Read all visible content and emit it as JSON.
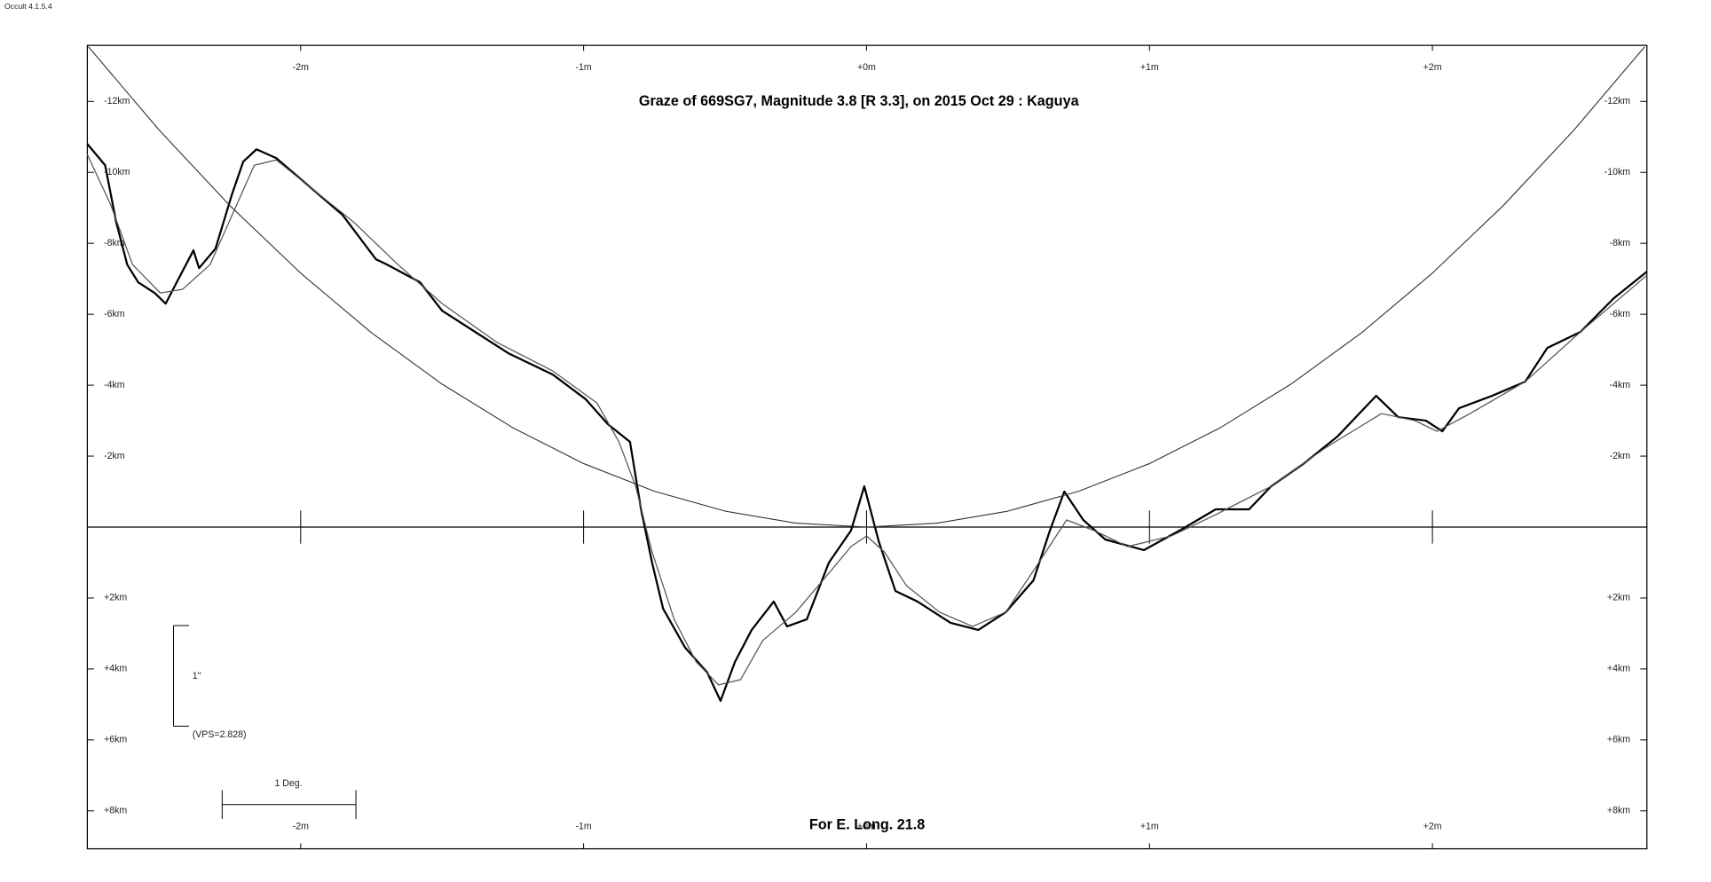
{
  "chart_data": {
    "type": "line",
    "version": "Occult 4.1.5.4",
    "title": "Graze of  669SG7,  Magnitude 3.8 [R 3.3],  on 2015 Oct 29  :  Kaguya",
    "footer": "For E. Long. 21.8",
    "annotations": [
      "1\"",
      "(VPS=2.828)",
      "1 Deg."
    ],
    "xlim": [
      -2.754,
      2.758
    ],
    "ylim": [
      9.07,
      -13.58
    ],
    "xticks": [
      {
        "value": -2,
        "label": "-2m"
      },
      {
        "value": -1,
        "label": "-1m"
      },
      {
        "value": 0,
        "label": "+0m"
      },
      {
        "value": 1,
        "label": "+1m"
      },
      {
        "value": 2,
        "label": "+2m"
      }
    ],
    "yticks": [
      {
        "value": -12,
        "label": "-12km"
      },
      {
        "value": -10,
        "label": "-10km"
      },
      {
        "value": -8,
        "label": "-8km"
      },
      {
        "value": -6,
        "label": "-6km"
      },
      {
        "value": -4,
        "label": "-4km"
      },
      {
        "value": -2,
        "label": "-2km"
      },
      {
        "value": 2,
        "label": "+2km"
      },
      {
        "value": 4,
        "label": "+4km"
      },
      {
        "value": 6,
        "label": "+6km"
      },
      {
        "value": 8,
        "label": "+8km"
      }
    ],
    "series": [
      {
        "color": "#000000",
        "x": [
          -2.754,
          -2.691,
          -2.652,
          -2.613,
          -2.574,
          -2.516,
          -2.477,
          -2.438,
          -2.379,
          -2.359,
          -2.301,
          -2.242,
          -2.203,
          -2.156,
          -2.086,
          -1.969,
          -1.852,
          -1.734,
          -1.695,
          -1.578,
          -1.5,
          -1.383,
          -1.266,
          -1.109,
          -0.992,
          -0.914,
          -0.836,
          -0.797,
          -0.758,
          -0.719,
          -0.641,
          -0.563,
          -0.516,
          -0.465,
          -0.406,
          -0.328,
          -0.281,
          -0.211,
          -0.133,
          -0.055,
          -0.008,
          0.043,
          0.102,
          0.18,
          0.297,
          0.395,
          0.492,
          0.59,
          0.648,
          0.699,
          0.766,
          0.844,
          0.98,
          1.117,
          1.234,
          1.352,
          1.43,
          1.547,
          1.664,
          1.801,
          1.879,
          1.977,
          2.035,
          2.094,
          2.211,
          2.328,
          2.406,
          2.523,
          2.641,
          2.758
        ],
        "values": [
          -10.8,
          -10.2,
          -8.6,
          -7.4,
          -6.9,
          -6.6,
          -6.3,
          -6.9,
          -7.8,
          -7.3,
          -7.85,
          -9.4,
          -10.3,
          -10.65,
          -10.4,
          -9.6,
          -8.8,
          -7.55,
          -7.4,
          -6.9,
          -6.1,
          -5.5,
          -4.9,
          -4.3,
          -3.6,
          -2.9,
          -2.4,
          -0.5,
          1.0,
          2.3,
          3.4,
          4.1,
          4.9,
          3.8,
          2.9,
          2.1,
          2.8,
          2.6,
          1.0,
          0.1,
          -1.15,
          0.4,
          1.8,
          2.1,
          2.7,
          2.9,
          2.4,
          1.5,
          0.1,
          -1.0,
          -0.2,
          0.35,
          0.65,
          0.05,
          -0.5,
          -0.5,
          -1.15,
          -1.8,
          -2.55,
          -3.7,
          -3.1,
          -3.0,
          -2.7,
          -3.35,
          -3.7,
          -4.1,
          -5.05,
          -5.5,
          -6.45,
          -7.2
        ]
      },
      {
        "color": "#555555",
        "x": [
          -2.754,
          -2.672,
          -2.594,
          -2.496,
          -2.418,
          -2.32,
          -2.242,
          -2.164,
          -2.086,
          -1.969,
          -1.813,
          -1.656,
          -1.5,
          -1.305,
          -1.109,
          -0.953,
          -0.875,
          -0.816,
          -0.758,
          -0.68,
          -0.602,
          -0.523,
          -0.445,
          -0.367,
          -0.25,
          -0.133,
          -0.055,
          0,
          0.063,
          0.141,
          0.258,
          0.375,
          0.492,
          0.609,
          0.707,
          0.805,
          0.922,
          1.078,
          1.234,
          1.43,
          1.625,
          1.82,
          1.938,
          2.016,
          2.133,
          2.328,
          2.523,
          2.758
        ],
        "values": [
          -10.5,
          -9.1,
          -7.4,
          -6.6,
          -6.7,
          -7.4,
          -8.8,
          -10.2,
          -10.35,
          -9.6,
          -8.6,
          -7.4,
          -6.3,
          -5.2,
          -4.4,
          -3.5,
          -2.4,
          -1.15,
          0.7,
          2.6,
          3.8,
          4.45,
          4.3,
          3.2,
          2.4,
          1.3,
          0.55,
          0.25,
          0.7,
          1.65,
          2.4,
          2.8,
          2.4,
          1.0,
          -0.2,
          0.1,
          0.55,
          0.25,
          -0.35,
          -1.15,
          -2.25,
          -3.2,
          -3.0,
          -2.7,
          -3.2,
          -4.1,
          -5.5,
          -7.1
        ]
      },
      {
        "color": "#333333",
        "x": [
          -2.75,
          -2.5,
          -2.25,
          -2,
          -1.75,
          -1.5,
          -1.25,
          -1,
          -0.75,
          -0.5,
          -0.25,
          0,
          0.25,
          0.5,
          0.75,
          1,
          1.25,
          1.5,
          1.75,
          2,
          2.25,
          2.5,
          2.75
        ],
        "values": [
          -13.54,
          -11.19,
          -9.06,
          -7.16,
          -5.48,
          -4.03,
          -2.8,
          -1.79,
          -1.01,
          -0.45,
          -0.11,
          0,
          -0.11,
          -0.45,
          -1.01,
          -1.79,
          -2.8,
          -4.03,
          -5.48,
          -7.16,
          -9.06,
          -11.19,
          -13.54
        ]
      }
    ]
  }
}
